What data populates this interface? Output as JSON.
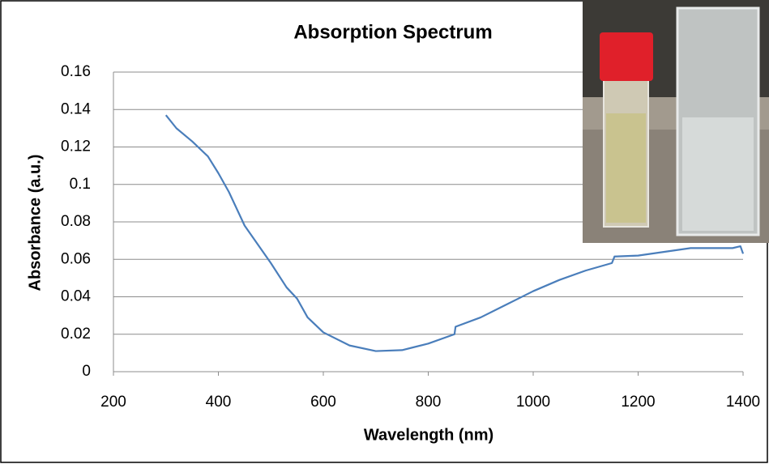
{
  "chart_data": {
    "type": "line",
    "title": "Absorption Spectrum",
    "x_label": "Wavelength (nm)",
    "y_label": "Absorbance (a.u.)",
    "x": [
      300,
      320,
      350,
      380,
      400,
      420,
      450,
      500,
      530,
      550,
      570,
      600,
      650,
      700,
      750,
      800,
      850,
      852,
      900,
      950,
      1000,
      1050,
      1100,
      1150,
      1155,
      1200,
      1250,
      1300,
      1350,
      1380,
      1395,
      1400
    ],
    "values": [
      0.137,
      0.13,
      0.123,
      0.115,
      0.106,
      0.096,
      0.078,
      0.058,
      0.045,
      0.039,
      0.029,
      0.021,
      0.014,
      0.011,
      0.0115,
      0.015,
      0.02,
      0.024,
      0.029,
      0.036,
      0.043,
      0.049,
      0.054,
      0.058,
      0.0615,
      0.062,
      0.064,
      0.066,
      0.066,
      0.066,
      0.067,
      0.063
    ],
    "color": "#4a7ebb",
    "xlim": [
      200,
      1400
    ],
    "xticks": [
      200,
      400,
      600,
      800,
      1000,
      1200,
      1400
    ],
    "ylim": [
      0,
      0.16
    ],
    "yticks": [
      0,
      0.02,
      0.04,
      0.06,
      0.08,
      0.1,
      0.12,
      0.14,
      0.16
    ],
    "grid": true
  }
}
